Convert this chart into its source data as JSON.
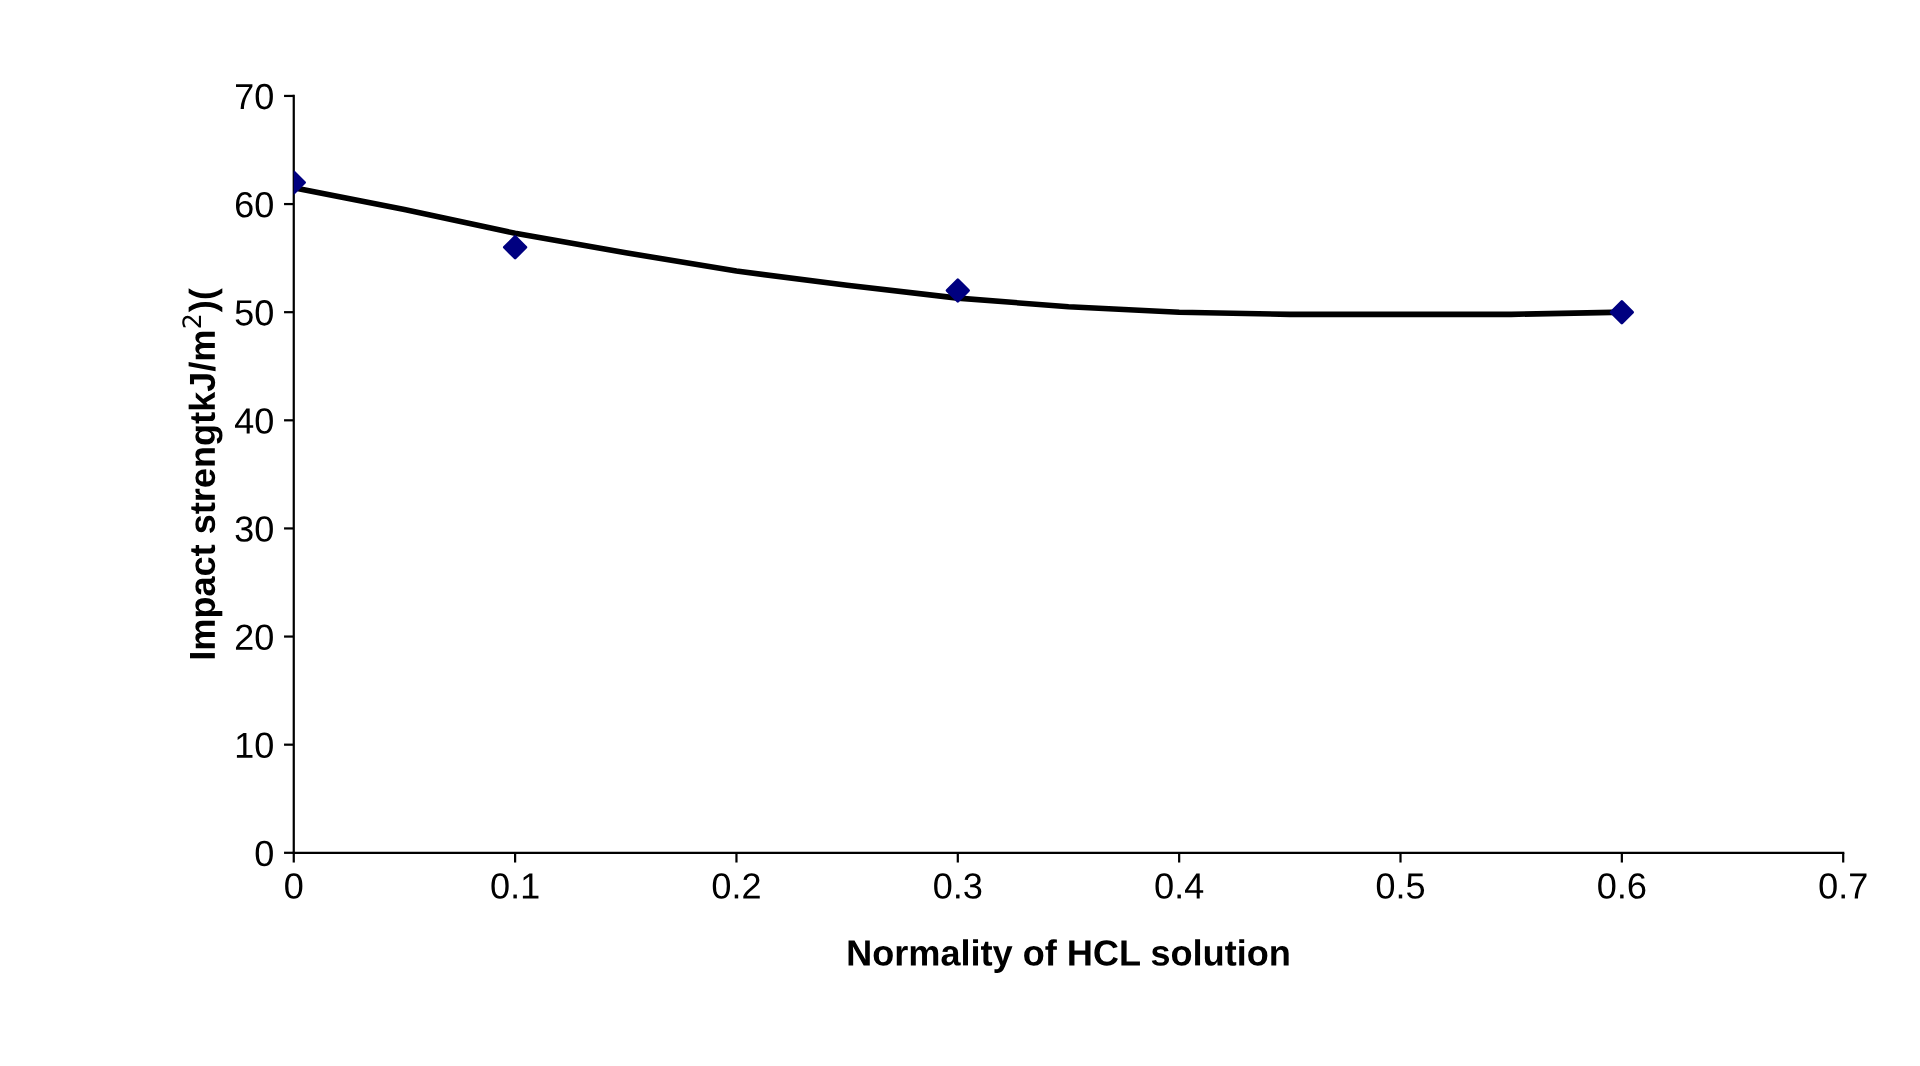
{
  "chart_data": {
    "type": "scatter",
    "xlabel": "Normality of HCL solution",
    "ylabel": "Impact strengtkJ/m$^{2}$)(",
    "xlim": [
      0,
      0.7
    ],
    "xticks": [
      0,
      0.1,
      0.2,
      0.3,
      0.4,
      0.5,
      0.6,
      0.7
    ],
    "ylim": [
      0,
      70
    ],
    "yticks": [
      0,
      10,
      20,
      30,
      40,
      50,
      60,
      70
    ],
    "grid": false,
    "legend": false,
    "series": [
      {
        "color": "#000080",
        "marker": "diamond",
        "x": [
          0,
          0.1,
          0.3,
          0.6
        ],
        "values": [
          62,
          56,
          52,
          50
        ]
      },
      {
        "type": "line",
        "color": "#000000",
        "marker": "none",
        "line_style": "solid",
        "x": [
          0,
          0.05,
          0.1,
          0.15,
          0.2,
          0.25,
          0.3,
          0.35,
          0.4,
          0.45,
          0.5,
          0.55,
          0.6
        ],
        "values": [
          61.5,
          59.5,
          57.3,
          55.5,
          53.8,
          52.5,
          51.3,
          50.5,
          50,
          49.8,
          49.8,
          49.8,
          50
        ]
      }
    ]
  }
}
